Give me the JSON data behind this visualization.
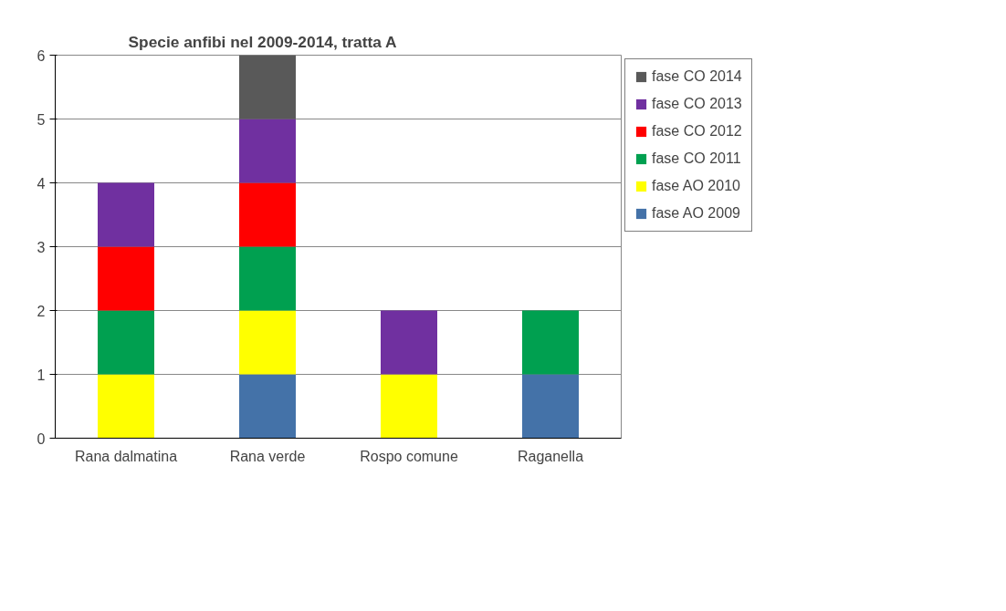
{
  "chart_data": {
    "type": "bar",
    "title": "Specie anfibi nel  2009-2014, tratta A",
    "categories": [
      "Rana dalmatina",
      "Rana verde",
      "Rospo comune",
      "Raganella"
    ],
    "stacked": true,
    "ylim": [
      0,
      6
    ],
    "yticks": [
      0,
      1,
      2,
      3,
      4,
      5,
      6
    ],
    "grid": "y",
    "legend": "right",
    "series": [
      {
        "name": "fase AO 2009",
        "color": "#4472a8",
        "values": [
          0,
          1,
          0,
          1
        ]
      },
      {
        "name": "fase AO 2010",
        "color": "#ffff00",
        "values": [
          1,
          1,
          1,
          0
        ]
      },
      {
        "name": "fase CO 2011",
        "color": "#00a050",
        "values": [
          1,
          1,
          0,
          1
        ]
      },
      {
        "name": "fase CO 2012",
        "color": "#ff0000",
        "values": [
          1,
          1,
          0,
          0
        ]
      },
      {
        "name": "fase CO 2013",
        "color": "#7030a0",
        "values": [
          1,
          1,
          1,
          0
        ]
      },
      {
        "name": "fase CO 2014",
        "color": "#595959",
        "values": [
          0,
          1,
          0,
          0
        ]
      }
    ]
  }
}
